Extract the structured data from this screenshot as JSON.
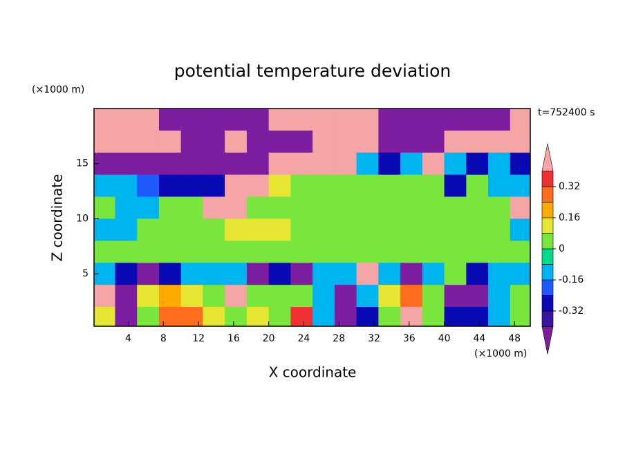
{
  "chart_data": {
    "type": "contour",
    "title": "potential temperature deviation",
    "x_label": "X coordinate",
    "y_label": "Z coordinate",
    "x_unit": "(×1000 m)",
    "y_unit": "(×1000 m)",
    "annotation": "t=752400 s",
    "xlim": [
      0.1,
      49.8
    ],
    "ylim": [
      0.25,
      20
    ],
    "xticks": [
      4,
      8,
      12,
      16,
      20,
      24,
      28,
      32,
      36,
      40,
      44,
      48
    ],
    "yticks": [
      5,
      10,
      15
    ],
    "x": [
      1.25,
      3.75,
      6.25,
      8.75,
      11.25,
      13.75,
      16.25,
      18.75,
      21.25,
      23.75,
      26.25,
      28.75,
      31.25,
      33.75,
      36.25,
      38.75,
      41.25,
      43.75,
      46.25,
      48.75
    ],
    "z": [
      19,
      17,
      15,
      13,
      11,
      9,
      7,
      5,
      3,
      1
    ],
    "values": [
      [
        0.5,
        0.5,
        0.5,
        -0.5,
        -0.5,
        -0.5,
        -0.5,
        -0.5,
        0.5,
        0.5,
        0.5,
        0.5,
        0.5,
        -0.5,
        -0.5,
        -0.5,
        -0.5,
        -0.5,
        -0.5,
        0.5
      ],
      [
        0.5,
        0.5,
        0.5,
        0.5,
        -0.5,
        -0.5,
        0.5,
        -0.5,
        -0.5,
        -0.5,
        0.5,
        0.5,
        0.5,
        -0.5,
        -0.5,
        -0.5,
        0.5,
        0.5,
        0.5,
        0.5
      ],
      [
        -0.5,
        -0.5,
        -0.5,
        -0.5,
        -0.5,
        -0.5,
        -0.5,
        -0.5,
        0.5,
        0.5,
        0.5,
        0.5,
        -0.1,
        -0.3,
        -0.1,
        0.5,
        -0.1,
        -0.3,
        -0.1,
        -0.3
      ],
      [
        -0.1,
        -0.1,
        -0.2,
        -0.3,
        -0.3,
        -0.3,
        0.5,
        0.5,
        0.1,
        0.05,
        0.05,
        0.05,
        0.05,
        0.05,
        0.05,
        0.05,
        -0.3,
        0.02,
        -0.1,
        -0.1
      ],
      [
        0.05,
        -0.1,
        -0.1,
        0.02,
        0.02,
        0.5,
        0.5,
        0.05,
        0.05,
        0.05,
        0.05,
        0.02,
        0.02,
        0.02,
        0.02,
        0.02,
        0.02,
        0.02,
        0.05,
        0.5
      ],
      [
        -0.1,
        -0.1,
        0.02,
        0.05,
        0.02,
        0.05,
        0.1,
        0.12,
        0.1,
        0.05,
        0.02,
        0.02,
        0.02,
        0.02,
        0.02,
        0.02,
        0.02,
        0.02,
        0.02,
        -0.1
      ],
      [
        0.02,
        0.02,
        0.05,
        0.05,
        0.05,
        0.05,
        0.05,
        0.05,
        0.05,
        0.05,
        0.05,
        0.02,
        0.05,
        0.02,
        0.02,
        0.05,
        0.02,
        0.05,
        0.05,
        0.02
      ],
      [
        -0.1,
        -0.3,
        -0.5,
        -0.3,
        -0.1,
        -0.1,
        -0.1,
        -0.5,
        -0.3,
        -0.5,
        -0.1,
        -0.1,
        0.5,
        -0.1,
        -0.5,
        -0.1,
        0.02,
        -0.3,
        -0.1,
        -0.1
      ],
      [
        0.5,
        -0.5,
        0.1,
        0.2,
        0.1,
        0.05,
        0.5,
        0.05,
        0.02,
        0.05,
        -0.1,
        -0.5,
        -0.1,
        0.1,
        0.3,
        0.05,
        -0.5,
        -0.5,
        -0.1,
        0.05
      ],
      [
        0.1,
        -0.5,
        0.05,
        0.3,
        0.3,
        0.1,
        0.05,
        0.1,
        0.05,
        0.35,
        -0.1,
        -0.5,
        -0.3,
        0.05,
        0.5,
        0.05,
        -0.3,
        -0.3,
        -0.1,
        0.05
      ]
    ],
    "levels": [
      -0.4,
      -0.32,
      -0.24,
      -0.16,
      -0.08,
      0,
      0.08,
      0.16,
      0.24,
      0.32,
      0.4
    ],
    "colors": [
      "#7d1ea0",
      "#3c14a0",
      "#0a0ab4",
      "#1e5aff",
      "#00b4f0",
      "#00dc8c",
      "#78e63c",
      "#e6e632",
      "#ffaa00",
      "#ff6e1e",
      "#f03232",
      "#f5a5a5"
    ],
    "colorbar_ticks": [
      -0.32,
      -0.16,
      0,
      0.16,
      0.32
    ]
  }
}
